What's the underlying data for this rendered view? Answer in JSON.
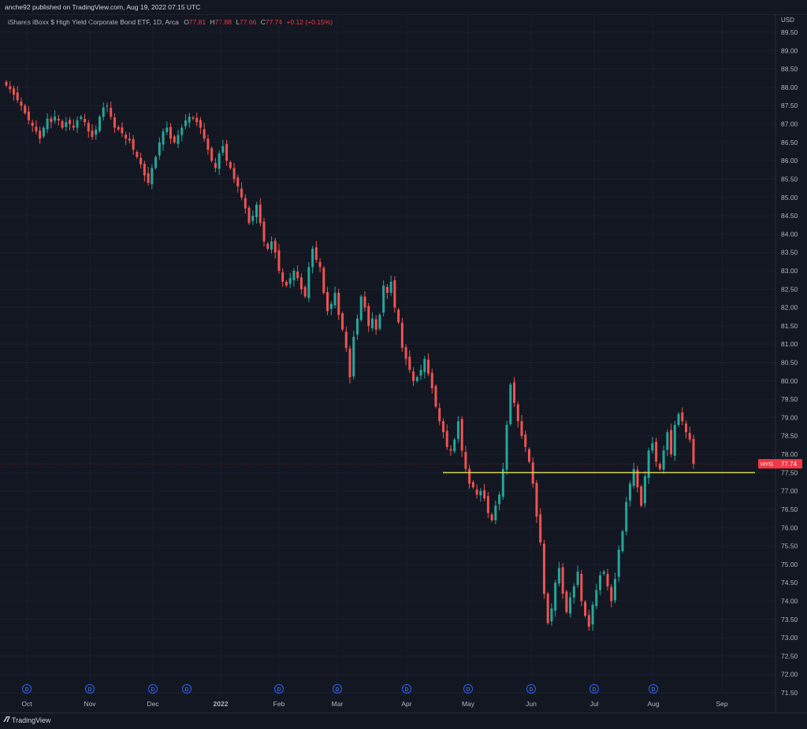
{
  "header": {
    "publish_text": "anche92 published on TradingView.com, Aug 19, 2022 07:15 UTC"
  },
  "legend": {
    "symbol_text": "iShares iBoxx $ High Yield Corporate Bond ETF, 1D, Arca",
    "o_label": "O",
    "o_value": "77.81",
    "h_label": "H",
    "h_value": "77.88",
    "l_label": "L",
    "l_value": "77.66",
    "c_label": "C",
    "c_value": "77.74",
    "change": "+0.12 (+0.15%)"
  },
  "price_tag": {
    "symbol": "HYG",
    "value": "77.74"
  },
  "currency": "USD",
  "footer": {
    "brand": "TradingView"
  },
  "colors": {
    "up": "#26a69a",
    "down": "#ef5350",
    "support_line": "#d4d45a",
    "background": "#131722",
    "tag": "#f23645"
  },
  "chart_data": {
    "type": "candlestick",
    "y_axis": {
      "min": 71.5,
      "max": 89.5,
      "step": 0.5,
      "tick_labels": [
        "89.50",
        "89.00",
        "88.50",
        "88.00",
        "87.50",
        "87.00",
        "86.50",
        "86.00",
        "85.50",
        "85.00",
        "84.50",
        "84.00",
        "83.50",
        "83.00",
        "82.50",
        "82.00",
        "81.50",
        "81.00",
        "80.50",
        "80.00",
        "79.50",
        "79.00",
        "78.50",
        "78.00",
        "77.50",
        "77.00",
        "76.50",
        "76.00",
        "75.50",
        "75.00",
        "74.50",
        "74.00",
        "73.50",
        "73.00",
        "72.50",
        "72.00",
        "71.50"
      ]
    },
    "x_axis": {
      "labels": [
        "Oct",
        "Nov",
        "Dec",
        "2022",
        "Feb",
        "Mar",
        "Apr",
        "May",
        "Jun",
        "Jul",
        "Aug",
        "Sep"
      ]
    },
    "dividend_marker_label": "D",
    "dividend_marker_count": 11,
    "support_level": 77.5,
    "last_close": 77.74,
    "closes": [
      88.05,
      87.95,
      87.8,
      87.65,
      87.5,
      87.3,
      87.1,
      86.95,
      86.8,
      86.6,
      86.9,
      87.15,
      87.05,
      87.2,
      87.1,
      86.9,
      87.05,
      87.0,
      86.9,
      87.1,
      87.2,
      87.05,
      86.8,
      86.65,
      86.85,
      87.2,
      87.45,
      87.5,
      87.2,
      86.9,
      86.85,
      86.75,
      86.6,
      86.55,
      86.3,
      86.1,
      85.9,
      85.6,
      85.4,
      85.8,
      86.1,
      86.5,
      86.8,
      86.9,
      86.6,
      86.5,
      86.7,
      86.9,
      87.1,
      87.2,
      87.15,
      87.05,
      86.9,
      86.6,
      86.3,
      86.0,
      85.8,
      86.2,
      86.4,
      86.0,
      85.8,
      85.5,
      85.3,
      85.0,
      84.7,
      84.3,
      84.5,
      84.8,
      84.3,
      83.8,
      83.6,
      83.8,
      83.5,
      83.0,
      82.7,
      82.6,
      82.8,
      83.0,
      82.8,
      82.5,
      82.3,
      83.1,
      83.6,
      83.3,
      83.1,
      82.4,
      81.9,
      82.1,
      82.4,
      81.8,
      81.4,
      80.9,
      80.1,
      81.2,
      81.7,
      82.3,
      82.0,
      81.5,
      81.7,
      81.4,
      81.8,
      82.6,
      82.4,
      82.7,
      82.0,
      81.6,
      80.9,
      80.6,
      80.3,
      80.0,
      80.1,
      80.3,
      80.6,
      80.2,
      79.8,
      79.3,
      78.9,
      78.6,
      78.2,
      78.1,
      78.4,
      78.9,
      78.1,
      77.6,
      77.2,
      77.1,
      76.9,
      77.0,
      76.8,
      76.4,
      76.2,
      76.6,
      76.9,
      77.6,
      78.8,
      79.9,
      79.4,
      78.9,
      78.5,
      78.2,
      77.8,
      77.2,
      76.3,
      75.6,
      74.2,
      73.4,
      73.8,
      74.5,
      74.9,
      74.2,
      73.7,
      74.1,
      74.4,
      74.8,
      74.0,
      73.6,
      73.3,
      73.9,
      74.3,
      74.7,
      74.8,
      74.4,
      74.0,
      74.6,
      75.4,
      75.9,
      76.7,
      77.2,
      77.6,
      77.1,
      76.6,
      77.4,
      78.1,
      78.3,
      77.8,
      77.6,
      78.1,
      78.6,
      78.0,
      78.8,
      79.1,
      78.9,
      78.6,
      78.4,
      77.74
    ]
  }
}
